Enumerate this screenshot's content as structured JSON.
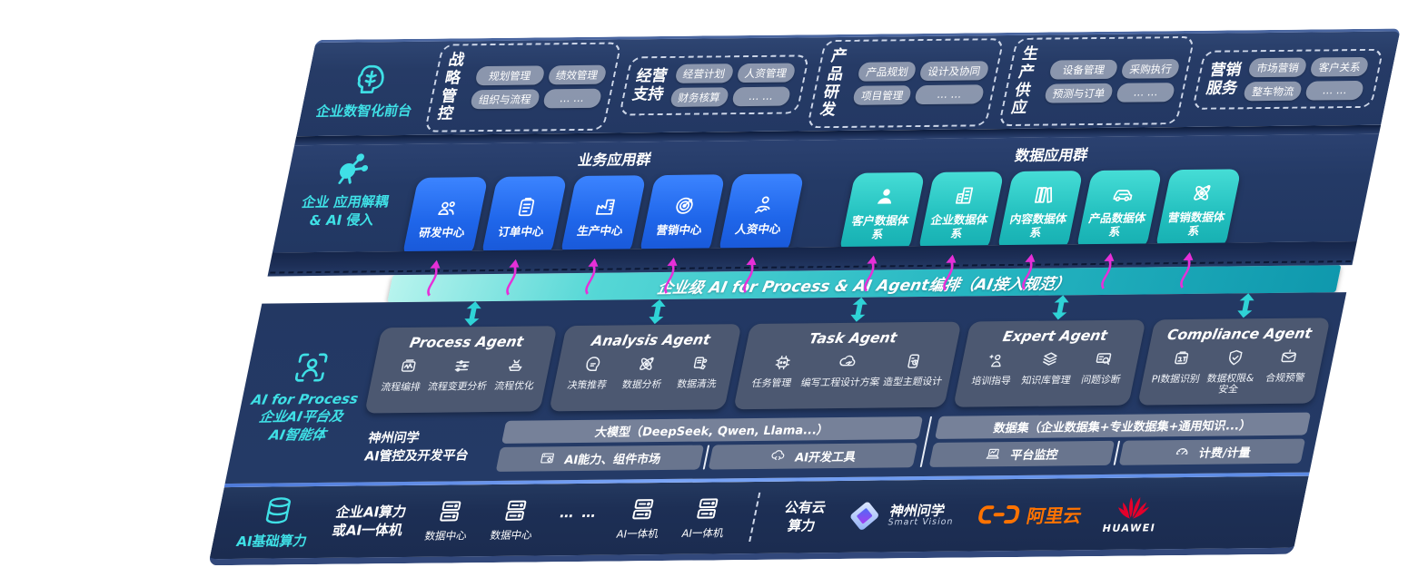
{
  "front_office": {
    "label": "企业数智化前台",
    "groups": [
      {
        "title_top": "战略",
        "title_bottom": "管控",
        "items": [
          "规划管理",
          "绩效管理",
          "组织与流程",
          "… …"
        ]
      },
      {
        "title_top": "经营",
        "title_bottom": "支持",
        "items": [
          "经营计划",
          "人资管理",
          "财务核算",
          "… …"
        ]
      },
      {
        "title_top": "产品",
        "title_bottom": "研发",
        "items": [
          "产品规划",
          "设计及协同",
          "项目管理",
          "… …"
        ]
      },
      {
        "title_top": "生产",
        "title_bottom": "供应",
        "items": [
          "设备管理",
          "采购执行",
          "预测与订单",
          "… …"
        ]
      },
      {
        "title_top": "营销",
        "title_bottom": "服务",
        "items": [
          "市场营销",
          "客户关系",
          "整车物流",
          "… …"
        ]
      }
    ]
  },
  "decouple": {
    "label_line1": "企业 应用解耦",
    "label_line2": "& AI 侵入",
    "business_group": {
      "title": "业务应用群",
      "tiles": [
        {
          "label": "研发中心",
          "icon": "team-icon"
        },
        {
          "label": "订单中心",
          "icon": "clipboard-icon"
        },
        {
          "label": "生产中心",
          "icon": "factory-icon"
        },
        {
          "label": "营销中心",
          "icon": "target-icon"
        },
        {
          "label": "人资中心",
          "icon": "hr-icon"
        }
      ]
    },
    "data_group": {
      "title": "数据应用群",
      "tiles": [
        {
          "label": "客户数据体系",
          "icon": "person-icon"
        },
        {
          "label": "企业数据体系",
          "icon": "building-icon"
        },
        {
          "label": "内容数据体系",
          "icon": "books-icon"
        },
        {
          "label": "产品数据体系",
          "icon": "car-icon"
        },
        {
          "label": "营销数据体系",
          "icon": "atom-icon"
        }
      ]
    }
  },
  "banner": {
    "text": "企业级 AI for Process & AI Agent编排（AI接入规范）"
  },
  "ai_platform": {
    "label_line1": "AI for Process",
    "label_line2": "企业AI平台及",
    "label_line3": "AI智能体",
    "agents": [
      {
        "title": "Process Agent",
        "items": [
          {
            "label": "流程编排",
            "icon": "wavebox-icon"
          },
          {
            "label": "流程变更分析",
            "icon": "sliders-icon"
          },
          {
            "label": "流程优化",
            "icon": "conveyor-icon"
          }
        ]
      },
      {
        "title": "Analysis Agent",
        "items": [
          {
            "label": "决策推荐",
            "icon": "decision-icon"
          },
          {
            "label": "数据分析",
            "icon": "atom-icon"
          },
          {
            "label": "数据清洗",
            "icon": "clean-icon"
          }
        ]
      },
      {
        "title": "Task Agent",
        "items": [
          {
            "label": "任务管理",
            "icon": "task-icon"
          },
          {
            "label": "编写工程设计方案",
            "icon": "cloud-edit-icon"
          },
          {
            "label": "造型主题设计",
            "icon": "design-icon"
          }
        ]
      },
      {
        "title": "Expert Agent",
        "items": [
          {
            "label": "培训指导",
            "icon": "training-icon"
          },
          {
            "label": "知识库管理",
            "icon": "knowledge-icon"
          },
          {
            "label": "问题诊断",
            "icon": "diagnose-icon"
          }
        ]
      },
      {
        "title": "Compliance Agent",
        "items": [
          {
            "label": "PI数据识别",
            "icon": "pi-id-icon"
          },
          {
            "label": "数据权限& 安全",
            "icon": "permission-icon"
          },
          {
            "label": "合规预警",
            "icon": "alert-icon"
          }
        ]
      }
    ],
    "platform": {
      "label_line1": "神州问学",
      "label_line2": "AI管控及开发平台",
      "model_bar": "大模型（DeepSeek, Qwen, Llama...）",
      "dataset_bar": "数据集（企业数据集+专业数据集+通用知识...）",
      "cells": [
        {
          "label": "AI能力、组件市场",
          "icon": "market-icon"
        },
        {
          "label": "AI开发工具",
          "icon": "devtools-icon"
        },
        {
          "label": "平台监控",
          "icon": "monitor-icon"
        },
        {
          "label": "计费/计量",
          "icon": "gauge-icon"
        }
      ]
    }
  },
  "infra": {
    "label": "AI基础算力",
    "compute_line1": "企业AI算力",
    "compute_line2": "或AI一体机",
    "nodes": [
      {
        "label": "数据中心",
        "icon": "server-icon"
      },
      {
        "label": "数据中心",
        "icon": "server-icon"
      }
    ],
    "dots": "… …",
    "nodes2": [
      {
        "label": "AI一体机",
        "icon": "server-icon"
      },
      {
        "label": "AI一体机",
        "icon": "server-icon"
      }
    ],
    "public_cloud_line1": "公有云",
    "public_cloud_line2": "算力",
    "logos": {
      "smartvision_cn": "神州问学",
      "smartvision_en": "Smart Vision",
      "aliyun": "阿里云",
      "huawei": "HUAWEI"
    }
  },
  "colors": {
    "cyan_accent": "#3fe0e6",
    "magenta_arrow": "#e62fd8",
    "blue_tile": "#1f66ea",
    "teal_tile": "#23c0bf",
    "banner_teal": "#27b7c2",
    "panel_navy": "#243a66",
    "aliyun_orange": "#ff7300",
    "huawei_red": "#e4002b"
  }
}
